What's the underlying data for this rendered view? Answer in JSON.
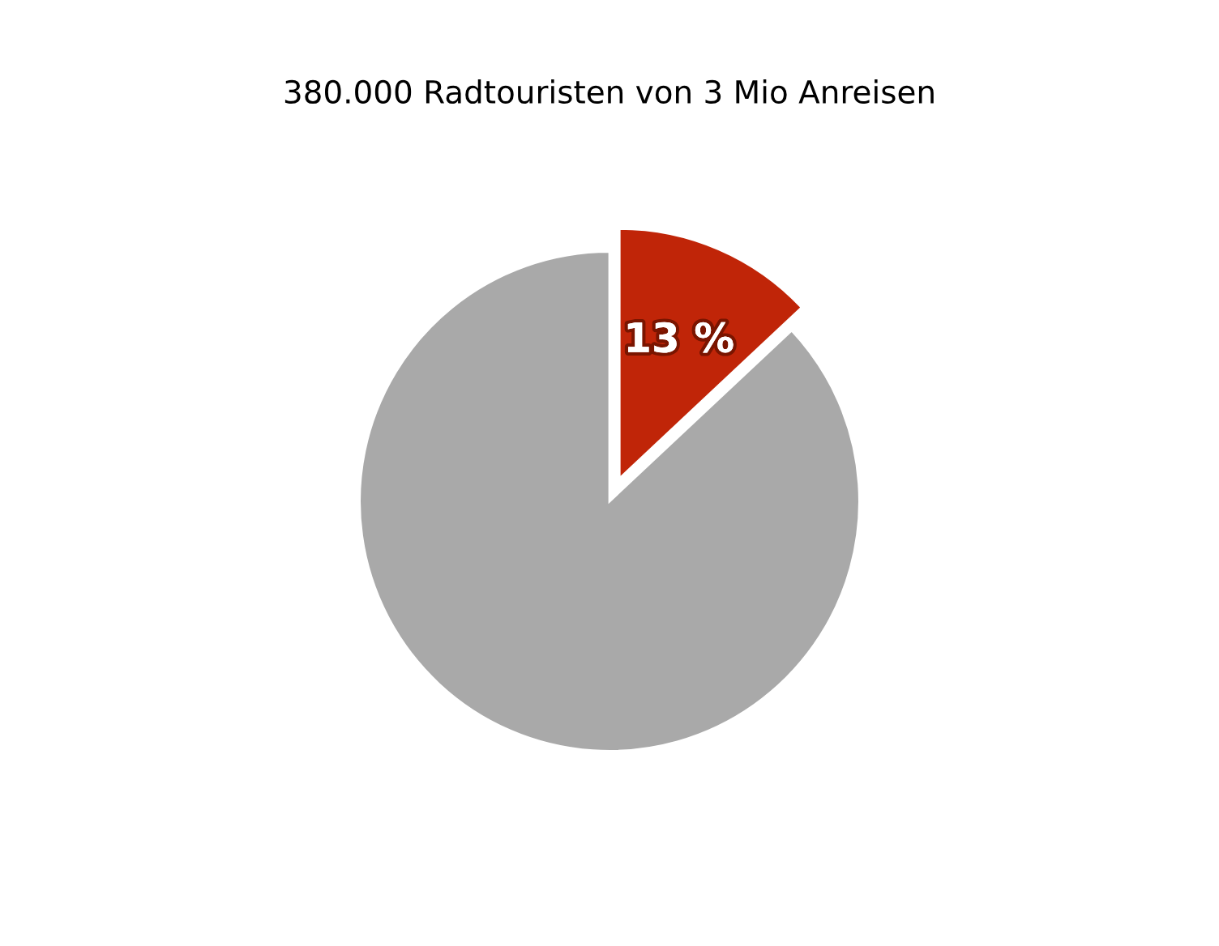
{
  "chart_data": {
    "type": "pie",
    "title": "380.000 Radtouristen von 3 Mio Anreisen",
    "categories": [
      null,
      null
    ],
    "values": [
      13,
      87
    ],
    "colors": [
      "#c02508",
      "#a9a9a9"
    ],
    "value_labels": [
      "13 %",
      null
    ],
    "legend": false
  }
}
